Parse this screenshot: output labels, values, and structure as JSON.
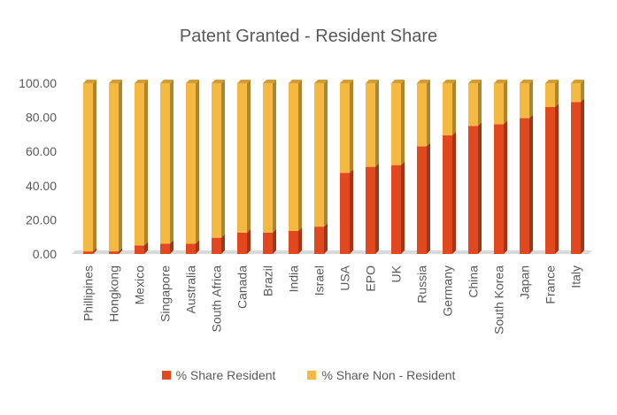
{
  "chart_data": {
    "type": "bar",
    "stacked": true,
    "title": "Patent Granted - Resident Share",
    "categories": [
      "Phillipines",
      "Hongkong",
      "Mexico",
      "Singapore",
      "Australia",
      "South Africa",
      "Canada",
      "Brazil",
      "India",
      "Israel",
      "USA",
      "EPO",
      "UK",
      "Russia",
      "Germany",
      "China",
      "South Korea",
      "Japan",
      "France",
      "Italy"
    ],
    "series": [
      {
        "name": "% Share Resident",
        "color": "#e2481f",
        "values": [
          1.5,
          1.5,
          5,
          6,
          6,
          9.5,
          12.5,
          12.5,
          13.5,
          16,
          47.5,
          51,
          52,
          63,
          69.5,
          75,
          76,
          79.5,
          86,
          89
        ]
      },
      {
        "name": "% Share Non - Resident",
        "color": "#f5b942",
        "values": [
          98.5,
          98.5,
          95,
          94,
          94,
          90.5,
          87.5,
          87.5,
          86.5,
          84,
          52.5,
          49,
          48,
          37,
          30.5,
          25,
          24,
          20.5,
          14,
          11
        ]
      }
    ],
    "ylim": [
      0,
      100
    ],
    "yticks": [
      "0.00",
      "20.00",
      "40.00",
      "60.00",
      "80.00",
      "100.00"
    ],
    "legend_position": "bottom",
    "grid": false
  }
}
